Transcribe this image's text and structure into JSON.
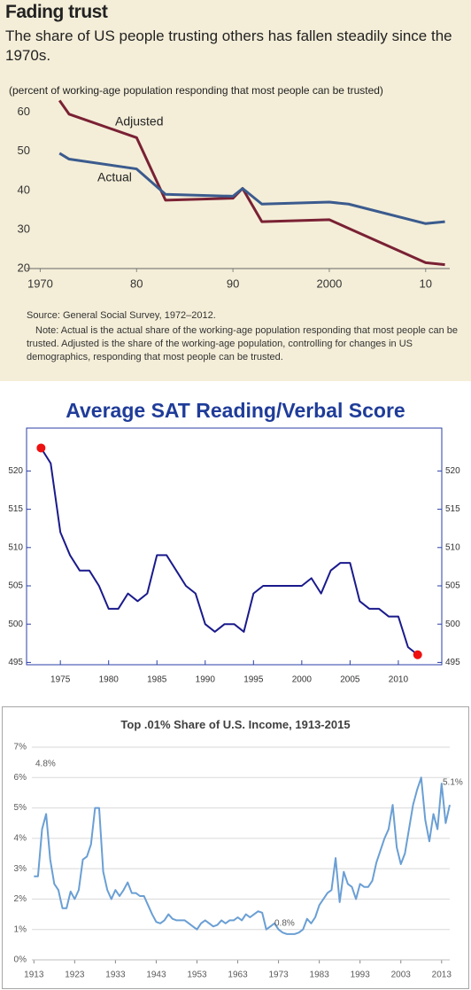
{
  "chart_data": [
    {
      "type": "line",
      "title": "Fading trust",
      "subtitle": "The share of US people trusting others has fallen steadily since the 1970s.",
      "y_label": "(percent of working-age population responding that most people can be trusted)",
      "source": "Source: General Social Survey, 1972–2012.",
      "note": "Note: Actual is the actual share of the working-age population responding that most people can be trusted. Adjusted is the share of the working-age population, controlling for changes in US demographics, responding that most people can be trusted.",
      "background": "#f4eed8",
      "x": [
        1972,
        1973,
        1980,
        1983,
        1990,
        1991,
        1993,
        2000,
        2002,
        2010,
        2012
      ],
      "series": [
        {
          "name": "Adjusted",
          "color": "#7a2134",
          "values": [
            63,
            59.5,
            53.5,
            37.5,
            38,
            40.5,
            32,
            32.5,
            30.3,
            21.5,
            21
          ]
        },
        {
          "name": "Actual",
          "color": "#3b5b8e",
          "values": [
            49.5,
            48,
            45.5,
            39,
            38.5,
            40.5,
            36.5,
            37,
            36.5,
            31.5,
            32
          ]
        }
      ],
      "xlim": [
        1969.5,
        2012.5
      ],
      "xticks": [
        1970,
        {
          "value": 1980,
          "label": "80"
        },
        {
          "value": 1990,
          "label": "90"
        },
        2000,
        {
          "value": 2010,
          "label": "10"
        }
      ],
      "ylim": [
        20,
        64
      ],
      "yticks": [
        20,
        30,
        40,
        50,
        60
      ],
      "grid": false
    },
    {
      "type": "line",
      "title": "Average SAT Reading/Verbal Score",
      "color": "#1a1a8c",
      "endpoint_color": "#ee1111",
      "frame_color": "#2a3fa6",
      "x": [
        1973,
        1974,
        1975,
        1976,
        1977,
        1978,
        1979,
        1980,
        1981,
        1982,
        1983,
        1984,
        1985,
        1986,
        1987,
        1988,
        1989,
        1990,
        1991,
        1992,
        1993,
        1994,
        1995,
        1996,
        1997,
        1998,
        1999,
        2000,
        2001,
        2002,
        2003,
        2004,
        2005,
        2006,
        2007,
        2008,
        2009,
        2010,
        2011,
        2012
      ],
      "values": [
        523,
        521,
        512,
        509,
        507,
        507,
        505,
        502,
        502,
        504,
        503,
        504,
        509,
        509,
        507,
        505,
        504,
        500,
        499,
        500,
        500,
        499,
        504,
        505,
        505,
        505,
        505,
        505,
        506,
        504,
        507,
        508,
        508,
        503,
        502,
        502,
        501,
        501,
        497,
        496
      ],
      "xlim": [
        1971.5,
        2014.5
      ],
      "xticks": [
        1975,
        1980,
        1985,
        1990,
        1995,
        2000,
        2005,
        2010
      ],
      "ylim": [
        494.7,
        525.6
      ],
      "yticks": [
        495,
        500,
        505,
        510,
        515,
        520
      ],
      "grid": false
    },
    {
      "type": "line",
      "title": "Top .01% Share of U.S. Income, 1913-2015",
      "color": "#6a9fd4",
      "x": [
        1913,
        1914,
        1915,
        1916,
        1917,
        1918,
        1919,
        1920,
        1921,
        1922,
        1923,
        1924,
        1925,
        1926,
        1927,
        1928,
        1929,
        1930,
        1931,
        1932,
        1933,
        1934,
        1935,
        1936,
        1937,
        1938,
        1939,
        1940,
        1941,
        1942,
        1943,
        1944,
        1945,
        1946,
        1947,
        1948,
        1949,
        1950,
        1951,
        1952,
        1953,
        1954,
        1955,
        1956,
        1957,
        1958,
        1959,
        1960,
        1961,
        1962,
        1963,
        1964,
        1965,
        1966,
        1967,
        1968,
        1969,
        1970,
        1971,
        1972,
        1973,
        1974,
        1975,
        1976,
        1977,
        1978,
        1979,
        1980,
        1981,
        1982,
        1983,
        1984,
        1985,
        1986,
        1987,
        1988,
        1989,
        1990,
        1991,
        1992,
        1993,
        1994,
        1995,
        1996,
        1997,
        1998,
        1999,
        2000,
        2001,
        2002,
        2003,
        2004,
        2005,
        2006,
        2007,
        2008,
        2009,
        2010,
        2011,
        2012,
        2013,
        2014,
        2015
      ],
      "values": [
        2.75,
        2.75,
        4.3,
        4.8,
        3.3,
        2.5,
        2.3,
        1.7,
        1.7,
        2.25,
        2.0,
        2.3,
        3.3,
        3.4,
        3.8,
        5.0,
        5.0,
        2.9,
        2.3,
        2.0,
        2.3,
        2.1,
        2.3,
        2.55,
        2.2,
        2.2,
        2.1,
        2.1,
        1.8,
        1.5,
        1.25,
        1.2,
        1.3,
        1.5,
        1.35,
        1.3,
        1.3,
        1.3,
        1.2,
        1.1,
        1.0,
        1.2,
        1.3,
        1.2,
        1.1,
        1.15,
        1.3,
        1.2,
        1.3,
        1.3,
        1.4,
        1.3,
        1.5,
        1.4,
        1.5,
        1.6,
        1.55,
        1.0,
        1.1,
        1.2,
        1.0,
        0.9,
        0.85,
        0.85,
        0.85,
        0.9,
        1.0,
        1.35,
        1.2,
        1.4,
        1.8,
        2.0,
        2.2,
        2.3,
        3.35,
        1.9,
        2.9,
        2.5,
        2.4,
        2.0,
        2.5,
        2.4,
        2.4,
        2.6,
        3.2,
        3.6,
        4.0,
        4.3,
        5.1,
        3.7,
        3.15,
        3.5,
        4.3,
        5.1,
        5.6,
        6.0,
        4.6,
        3.9,
        4.8,
        4.3,
        5.8,
        4.5,
        5.1
      ],
      "annotations": [
        "4.8%",
        "0.8%",
        "5.1%"
      ],
      "xlim": [
        1912.5,
        2015
      ],
      "xticks": [
        1913,
        1923,
        1933,
        1943,
        1953,
        1963,
        1973,
        1983,
        1993,
        2003,
        2013
      ],
      "ylim": [
        0,
        7
      ],
      "yticks": [
        {
          "value": 0,
          "label": "0%"
        },
        {
          "value": 1,
          "label": "1%"
        },
        {
          "value": 2,
          "label": "2%"
        },
        {
          "value": 3,
          "label": "3%"
        },
        {
          "value": 4,
          "label": "4%"
        },
        {
          "value": 5,
          "label": "5%"
        },
        {
          "value": 6,
          "label": "6%"
        },
        {
          "value": 7,
          "label": "7%"
        }
      ],
      "grid": true
    }
  ]
}
